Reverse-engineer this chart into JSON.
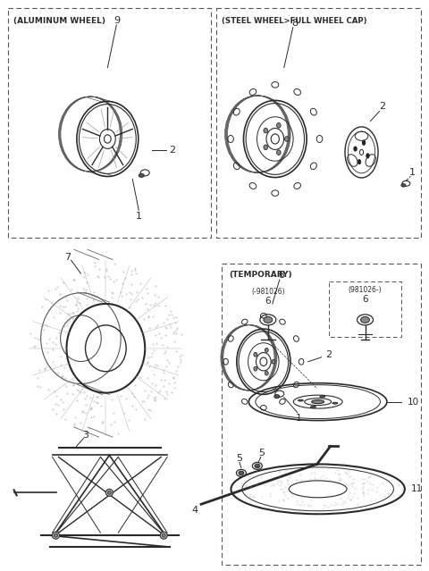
{
  "bg_color": "#ffffff",
  "line_color": "#2a2a2a",
  "box1_label": "(ALUMINUM WHEEL)",
  "box2_label": "(STEEL WHEEL>FULL WHEEL CAP)",
  "box3_label": "(TEMPORARY)",
  "figsize": [
    4.8,
    6.39
  ],
  "dpi": 100
}
